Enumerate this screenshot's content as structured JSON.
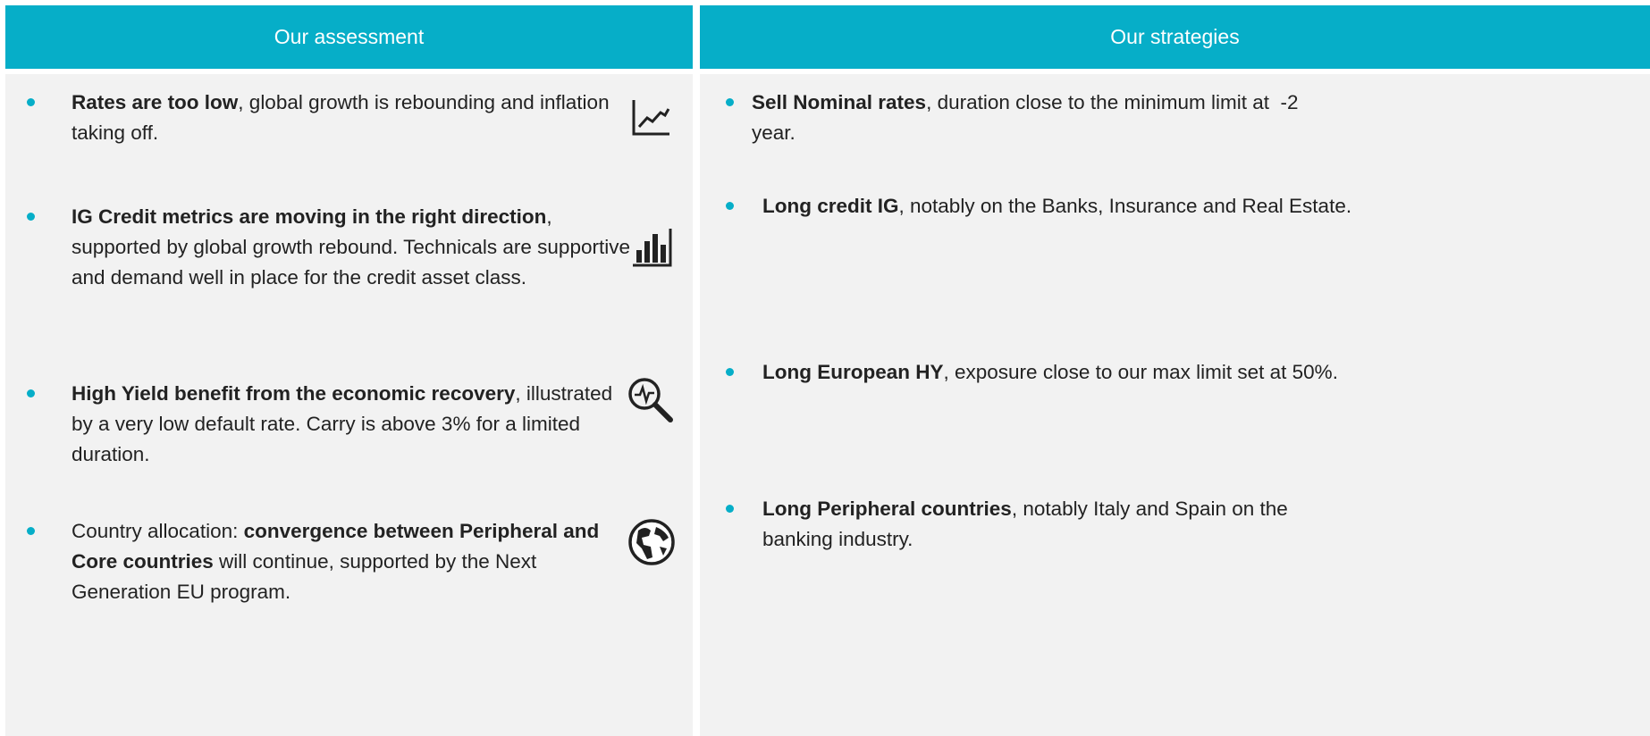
{
  "left": {
    "header": "Our assessment",
    "items": [
      [
        {
          "text": "Rates are too low",
          "bold": true
        },
        {
          "text": ", global growth is rebounding and inflation taking off.",
          "bold": false
        }
      ],
      [
        {
          "text": "IG Credit metrics are moving in the right direction",
          "bold": true
        },
        {
          "text": ", supported by global growth rebound. Technicals are supportive and demand well in place for the credit asset class.",
          "bold": false
        }
      ],
      [
        {
          "text": "High Yield benefit from the economic recovery",
          "bold": true
        },
        {
          "text": ", illustrated by a very low default rate. Carry is above 3% for a limited duration.",
          "bold": false
        }
      ],
      [
        {
          "text": "Country allocation: ",
          "bold": false
        },
        {
          "text": "convergence between Peripheral and Core countries",
          "bold": true
        },
        {
          "text": " will continue, supported by the Next Generation EU program.",
          "bold": false
        }
      ]
    ]
  },
  "right": {
    "header": "Our strategies",
    "items": [
      [
        {
          "text": "Sell Nominal rates",
          "bold": true
        },
        {
          "text": ", duration close to the minimum limit at  -2 year.",
          "bold": false
        }
      ],
      [
        {
          "text": "Long credit IG",
          "bold": true
        },
        {
          "text": ", notably on the Banks, Insurance and Real Estate.",
          "bold": false
        }
      ],
      [
        {
          "text": "Long European HY",
          "bold": true
        },
        {
          "text": ", exposure close to our max limit set at 50%.",
          "bold": false
        }
      ],
      [
        {
          "text": "Long Peripheral countries",
          "bold": true
        },
        {
          "text": ", notably Italy and Spain on the banking industry.",
          "bold": false
        }
      ]
    ]
  }
}
